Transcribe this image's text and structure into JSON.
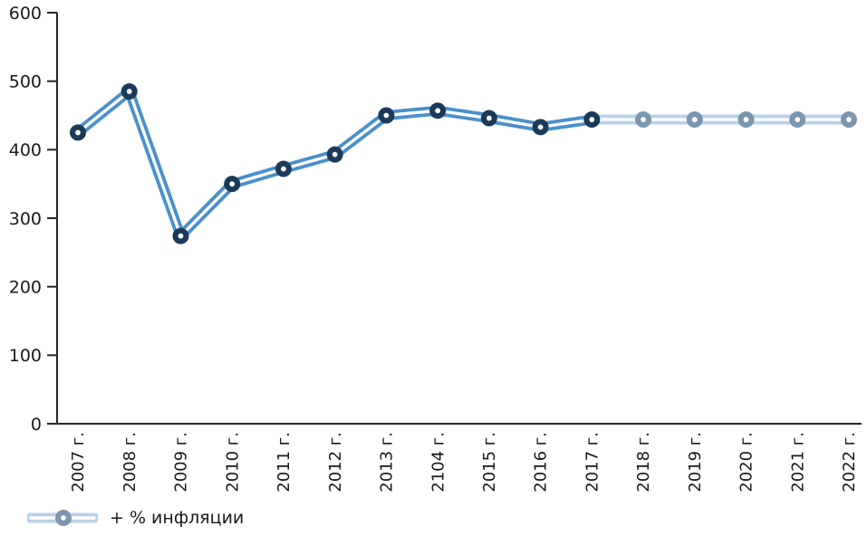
{
  "chart_data": {
    "type": "line",
    "title": "",
    "xlabel": "",
    "ylabel": "",
    "categories": [
      "2007 г.",
      "2008 г.",
      "2009 г.",
      "2010 г.",
      "2011 г.",
      "2012 г.",
      "2013 г.",
      "2104 г.",
      "2015 г.",
      "2016 г.",
      "2017 г.",
      "2018 г.",
      "2019 г.",
      "2020 г.",
      "2021 г.",
      "2022 г."
    ],
    "series": [
      {
        "name": "+ % инфляции",
        "values": [
          425,
          485,
          274,
          350,
          372,
          393,
          450,
          457,
          446,
          433,
          444,
          444,
          444,
          444,
          444,
          444
        ],
        "solid_through_index": 10,
        "note_forecast_segment": "2017–2022 drawn faded (projection style)"
      }
    ],
    "ylim": [
      0,
      600
    ],
    "yticks": [
      0,
      100,
      200,
      300,
      400,
      500,
      600
    ],
    "grid": false,
    "legend_position": "bottom-left",
    "marker_style": "donut",
    "line_style": "double-stripe",
    "colors": {
      "background": "#ffffff",
      "line_solid": "#4a90cb",
      "line_faded": "#b7d2ec",
      "line_stripe": "#ffffff",
      "marker_solid": "#1c3a58",
      "marker_faded": "#7d95ae",
      "marker_hole": "#ffffff",
      "axis": "#262626",
      "tick_label": "#1a1a1a"
    }
  },
  "legend": {
    "label": "+ % инфляции"
  }
}
